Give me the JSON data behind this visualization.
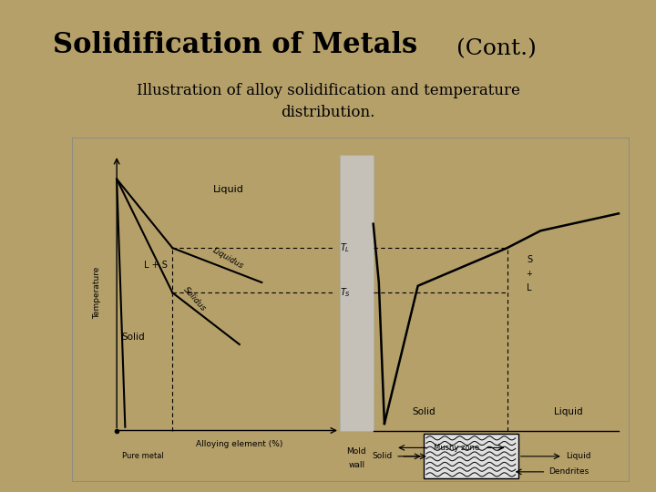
{
  "title_main": "Solidification of Metals",
  "title_cont": " (Cont.)",
  "subtitle_line1": "Illustration of alloy solidification and temperature",
  "subtitle_line2": "distribution.",
  "bg_color": "#b5a06a",
  "title_fontsize": 22,
  "subtitle_fontsize": 12
}
